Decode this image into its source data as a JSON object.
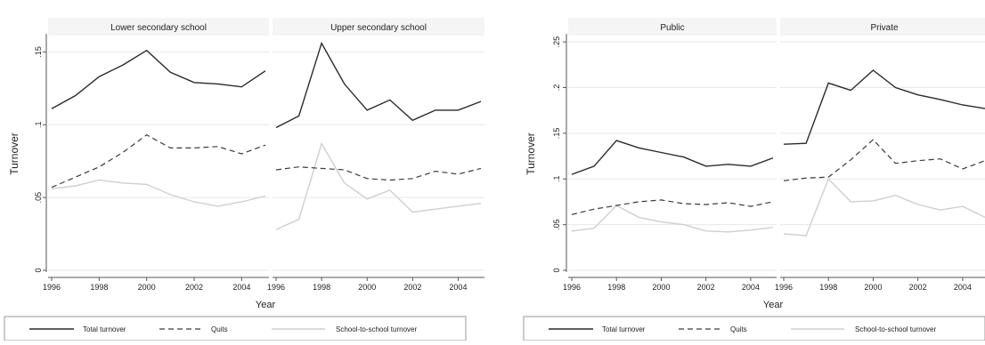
{
  "colors": {
    "total": "#2a2a2a",
    "quits": "#3a3a3a",
    "school": "#cfcfcf",
    "grid": "#e8e8e8",
    "axis": "#555555",
    "text": "#222222",
    "header_bg": "#f5f5f5"
  },
  "legend": {
    "total": "Total turnover",
    "quits": "Quits",
    "school": "School-to-school turnover"
  },
  "chart_data": [
    {
      "type": "line",
      "ylabel": "Turnover",
      "xlabel": "Year",
      "ylim": [
        0,
        0.16
      ],
      "yticks": [
        0,
        0.05,
        0.1,
        0.15
      ],
      "ytick_labels": [
        "0",
        ".05",
        ".1",
        ".15"
      ],
      "xticks": [
        1996,
        1998,
        2000,
        2002,
        2004
      ],
      "xtick_labels": [
        "1996",
        "1998",
        "2000",
        "2002",
        "2004"
      ],
      "x": [
        1996,
        1997,
        1998,
        1999,
        2000,
        2001,
        2002,
        2003,
        2004,
        2005
      ],
      "grid": true,
      "legend_position": "bottom",
      "panels": [
        {
          "title": "Lower secondary school",
          "series": [
            {
              "name": "Total turnover",
              "values": [
                0.111,
                0.12,
                0.133,
                0.141,
                0.151,
                0.136,
                0.129,
                0.128,
                0.126,
                0.137
              ]
            },
            {
              "name": "Quits",
              "values": [
                0.057,
                0.064,
                0.071,
                0.081,
                0.093,
                0.084,
                0.084,
                0.085,
                0.08,
                0.086
              ]
            },
            {
              "name": "School-to-school turnover",
              "values": [
                0.056,
                0.058,
                0.062,
                0.06,
                0.059,
                0.052,
                0.047,
                0.044,
                0.047,
                0.051
              ]
            }
          ]
        },
        {
          "title": "Upper secondary school",
          "series": [
            {
              "name": "Total turnover",
              "values": [
                0.098,
                0.106,
                0.156,
                0.128,
                0.11,
                0.117,
                0.103,
                0.11,
                0.11,
                0.116
              ]
            },
            {
              "name": "Quits",
              "values": [
                0.069,
                0.071,
                0.07,
                0.069,
                0.063,
                0.062,
                0.063,
                0.068,
                0.066,
                0.07
              ]
            },
            {
              "name": "School-to-school turnover",
              "values": [
                0.028,
                0.035,
                0.087,
                0.06,
                0.049,
                0.055,
                0.04,
                0.042,
                0.044,
                0.046
              ]
            }
          ]
        }
      ]
    },
    {
      "type": "line",
      "ylabel": "Turnover",
      "xlabel": "Year",
      "ylim": [
        0,
        0.255
      ],
      "yticks": [
        0,
        0.05,
        0.1,
        0.15,
        0.2,
        0.25
      ],
      "ytick_labels": [
        "0",
        ".05",
        ".1",
        ".15",
        ".2",
        ".25"
      ],
      "xticks": [
        1996,
        1998,
        2000,
        2002,
        2004
      ],
      "xtick_labels": [
        "1996",
        "1998",
        "2000",
        "2002",
        "2004"
      ],
      "x": [
        1996,
        1997,
        1998,
        1999,
        2000,
        2001,
        2002,
        2003,
        2004,
        2005
      ],
      "grid": true,
      "legend_position": "bottom",
      "panels": [
        {
          "title": "Public",
          "series": [
            {
              "name": "Total turnover",
              "values": [
                0.105,
                0.114,
                0.142,
                0.134,
                0.129,
                0.124,
                0.114,
                0.116,
                0.114,
                0.123
              ]
            },
            {
              "name": "Quits",
              "values": [
                0.061,
                0.067,
                0.071,
                0.075,
                0.077,
                0.073,
                0.072,
                0.074,
                0.07,
                0.075
              ]
            },
            {
              "name": "School-to-school turnover",
              "values": [
                0.043,
                0.046,
                0.071,
                0.058,
                0.053,
                0.05,
                0.043,
                0.042,
                0.044,
                0.047
              ]
            }
          ]
        },
        {
          "title": "Private",
          "series": [
            {
              "name": "Total turnover",
              "values": [
                0.138,
                0.139,
                0.205,
                0.197,
                0.219,
                0.2,
                0.192,
                0.187,
                0.181,
                0.177
              ]
            },
            {
              "name": "Quits",
              "values": [
                0.098,
                0.101,
                0.102,
                0.121,
                0.143,
                0.117,
                0.12,
                0.122,
                0.111,
                0.12
              ]
            },
            {
              "name": "School-to-school turnover",
              "values": [
                0.04,
                0.038,
                0.1,
                0.075,
                0.076,
                0.082,
                0.072,
                0.066,
                0.07,
                0.058
              ]
            }
          ]
        }
      ]
    }
  ]
}
